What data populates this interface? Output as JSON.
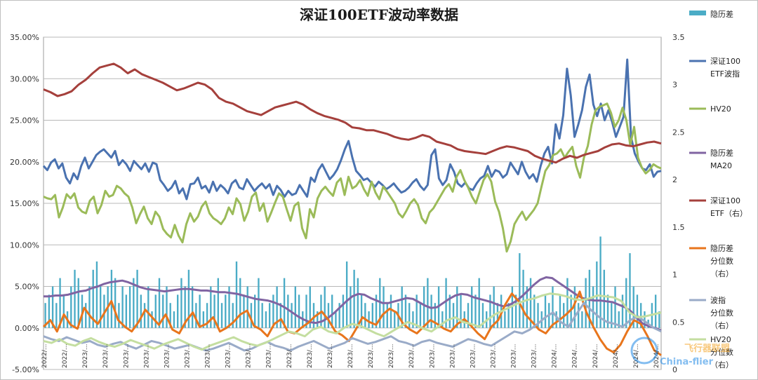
{
  "chart_data": {
    "type": "line",
    "title": "深证100ETF波动率数据",
    "xlabel": "",
    "ylabel": "",
    "ylim": [
      -0.05,
      0.35
    ],
    "y2lim": [
      0,
      3.5
    ],
    "y_ticks": [
      "-5.00%",
      "0.00%",
      "5.00%",
      "10.00%",
      "15.00%",
      "20.00%",
      "25.00%",
      "30.00%",
      "35.00%"
    ],
    "y2_ticks": [
      "0",
      "0.5",
      "1",
      "1.5",
      "2",
      "2.5",
      "3",
      "3.5"
    ],
    "x_tick_labels": [
      "2022/...",
      "2022/...",
      "2023/...",
      "2023/...",
      "2023/...",
      "2023/...",
      "2023/...",
      "2023/...",
      "2023/...",
      "2023/...",
      "2023/...",
      "2023/...",
      "2023/...",
      "2023/...",
      "2023/...",
      "2023/...",
      "2023/...",
      "2023/...",
      "2023/...",
      "2023/...",
      "2023/...",
      "2023/...",
      "2023/...",
      "2023/...",
      "2023/...",
      "2024/...",
      "2024/...",
      "2024/...",
      "2024/...",
      "2024/...",
      "2024/..."
    ],
    "grid": true,
    "legend_position": "right",
    "series": [
      {
        "name": "隐历差",
        "kind": "bar",
        "axis": "left",
        "color": "#4bacc6",
        "values": [
          0.03,
          0.04,
          0.05,
          0.03,
          0.06,
          0.04,
          0.02,
          0.05,
          0.07,
          0.06,
          0.04,
          0.03,
          0.05,
          0.07,
          0.08,
          0.05,
          0.04,
          0.05,
          0.07,
          0.06,
          0.03,
          0.05,
          0.04,
          0.05,
          0.06,
          0.07,
          0.04,
          0.03,
          0.05,
          0.02,
          0.04,
          0.06,
          0.04,
          0.05,
          0.03,
          0.02,
          0.04,
          0.06,
          0.05,
          0.07,
          0.05,
          0.03,
          0.04,
          0.02,
          0.03,
          0.05,
          0.04,
          0.06,
          0.03,
          0.04,
          0.05,
          0.03,
          0.08,
          0.06,
          0.04,
          0.05,
          0.03,
          0.04,
          0.06,
          0.03,
          0.02,
          0.03,
          0.04,
          0.05,
          0.03,
          0.06,
          0.04,
          0.03,
          0.05,
          0.04,
          0.02,
          0.04,
          0.05,
          0.03,
          0.02,
          0.04,
          0.05,
          0.03,
          0.04,
          0.02,
          0.03,
          0.04,
          0.08,
          0.05,
          0.07,
          0.06,
          0.04,
          0.03,
          0.02,
          0.03,
          0.04,
          0.06,
          0.05,
          0.03,
          0.04,
          0.02,
          0.03,
          0.05,
          0.04,
          0.03,
          0.02,
          0.04,
          0.03,
          0.05,
          0.06,
          0.04,
          0.03,
          0.05,
          0.02,
          0.06,
          0.04,
          0.03,
          0.05,
          0.04,
          0.02,
          0.03,
          0.05,
          0.04,
          0.06,
          0.03,
          0.02,
          0.04,
          0.05,
          0.03,
          0.04,
          0.02,
          0.03,
          0.05,
          0.04,
          0.09,
          0.07,
          0.05,
          0.06,
          0.04,
          0.03,
          0.02,
          0.04,
          0.03,
          0.05,
          0.02,
          0.04,
          0.03,
          0.06,
          0.04,
          0.05,
          0.03,
          0.02,
          0.06,
          0.07,
          0.05,
          0.08,
          0.11,
          0.07,
          0.04,
          0.03,
          0.05,
          0.02,
          0.04,
          0.06,
          0.09,
          0.05,
          0.04,
          0.03,
          0.02,
          0.01,
          0.03,
          0.04,
          0.02
        ]
      },
      {
        "name": "深证100ETF波指",
        "kind": "line",
        "axis": "left",
        "color": "#4a72b0",
        "values": [
          0.195,
          0.19,
          0.199,
          0.203,
          0.192,
          0.198,
          0.181,
          0.174,
          0.186,
          0.179,
          0.195,
          0.205,
          0.192,
          0.2,
          0.208,
          0.212,
          0.215,
          0.21,
          0.205,
          0.213,
          0.196,
          0.202,
          0.197,
          0.189,
          0.201,
          0.196,
          0.191,
          0.198,
          0.188,
          0.199,
          0.197,
          0.178,
          0.172,
          0.165,
          0.169,
          0.177,
          0.162,
          0.168,
          0.155,
          0.173,
          0.174,
          0.181,
          0.168,
          0.171,
          0.163,
          0.176,
          0.165,
          0.172,
          0.168,
          0.162,
          0.174,
          0.178,
          0.169,
          0.167,
          0.179,
          0.172,
          0.165,
          0.17,
          0.174,
          0.168,
          0.173,
          0.16,
          0.171,
          0.166,
          0.158,
          0.165,
          0.16,
          0.162,
          0.172,
          0.165,
          0.158,
          0.181,
          0.176,
          0.19,
          0.197,
          0.188,
          0.179,
          0.184,
          0.191,
          0.202,
          0.215,
          0.225,
          0.205,
          0.189,
          0.184,
          0.178,
          0.18,
          0.175,
          0.17,
          0.176,
          0.172,
          0.167,
          0.17,
          0.174,
          0.168,
          0.163,
          0.165,
          0.169,
          0.175,
          0.179,
          0.171,
          0.166,
          0.172,
          0.208,
          0.215,
          0.18,
          0.172,
          0.178,
          0.197,
          0.188,
          0.174,
          0.17,
          0.175,
          0.168,
          0.166,
          0.174,
          0.18,
          0.183,
          0.195,
          0.182,
          0.19,
          0.188,
          0.181,
          0.185,
          0.199,
          0.192,
          0.185,
          0.2,
          0.188,
          0.18,
          0.185,
          0.176,
          0.195,
          0.21,
          0.218,
          0.198,
          0.245,
          0.228,
          0.256,
          0.312,
          0.28,
          0.23,
          0.245,
          0.262,
          0.29,
          0.305,
          0.269,
          0.255,
          0.27,
          0.25,
          0.262,
          0.248,
          0.23,
          0.242,
          0.254,
          0.323,
          0.23,
          0.21,
          0.2,
          0.192,
          0.19,
          0.197,
          0.182,
          0.188,
          0.189
        ]
      },
      {
        "name": "HV20",
        "kind": "line",
        "axis": "left",
        "color": "#9bbb59",
        "values": [
          0.158,
          0.156,
          0.155,
          0.16,
          0.133,
          0.145,
          0.161,
          0.156,
          0.162,
          0.145,
          0.14,
          0.138,
          0.153,
          0.158,
          0.138,
          0.148,
          0.165,
          0.158,
          0.16,
          0.171,
          0.168,
          0.162,
          0.158,
          0.145,
          0.126,
          0.137,
          0.146,
          0.132,
          0.125,
          0.14,
          0.134,
          0.119,
          0.113,
          0.109,
          0.124,
          0.111,
          0.103,
          0.125,
          0.138,
          0.128,
          0.134,
          0.146,
          0.152,
          0.138,
          0.132,
          0.129,
          0.125,
          0.132,
          0.145,
          0.137,
          0.156,
          0.149,
          0.129,
          0.14,
          0.158,
          0.163,
          0.141,
          0.15,
          0.128,
          0.139,
          0.151,
          0.162,
          0.158,
          0.143,
          0.129,
          0.147,
          0.151,
          0.12,
          0.108,
          0.143,
          0.133,
          0.156,
          0.165,
          0.17,
          0.164,
          0.159,
          0.175,
          0.18,
          0.16,
          0.182,
          0.168,
          0.171,
          0.178,
          0.167,
          0.159,
          0.176,
          0.163,
          0.155,
          0.17,
          0.164,
          0.157,
          0.15,
          0.138,
          0.133,
          0.141,
          0.15,
          0.155,
          0.148,
          0.132,
          0.126,
          0.139,
          0.144,
          0.152,
          0.16,
          0.168,
          0.173,
          0.164,
          0.182,
          0.19,
          0.178,
          0.169,
          0.158,
          0.15,
          0.164,
          0.178,
          0.185,
          0.176,
          0.152,
          0.14,
          0.12,
          0.092,
          0.104,
          0.125,
          0.133,
          0.14,
          0.13,
          0.136,
          0.142,
          0.15,
          0.17,
          0.189,
          0.196,
          0.208,
          0.21,
          0.215,
          0.205,
          0.212,
          0.218,
          0.195,
          0.181,
          0.205,
          0.219,
          0.245,
          0.262,
          0.266,
          0.268,
          0.27,
          0.259,
          0.242,
          0.25,
          0.265,
          0.25,
          0.22,
          0.242,
          0.205,
          0.193,
          0.186,
          0.19,
          0.197,
          0.194,
          0.192
        ]
      },
      {
        "name": "隐历差MA20",
        "kind": "line",
        "axis": "left",
        "color": "#8064a2",
        "values": [
          0.038,
          0.038,
          0.039,
          0.039,
          0.04,
          0.042,
          0.044,
          0.045,
          0.048,
          0.05,
          0.053,
          0.055,
          0.056,
          0.057,
          0.055,
          0.052,
          0.049,
          0.047,
          0.046,
          0.045,
          0.044,
          0.045,
          0.046,
          0.047,
          0.047,
          0.046,
          0.045,
          0.045,
          0.044,
          0.043,
          0.043,
          0.042,
          0.041,
          0.039,
          0.037,
          0.035,
          0.034,
          0.033,
          0.031,
          0.028,
          0.024,
          0.019,
          0.014,
          0.01,
          0.007,
          0.006,
          0.008,
          0.012,
          0.018,
          0.025,
          0.032,
          0.038,
          0.041,
          0.04,
          0.036,
          0.033,
          0.03,
          0.03,
          0.032,
          0.034,
          0.036,
          0.035,
          0.031,
          0.027,
          0.024,
          0.025,
          0.03,
          0.035,
          0.039,
          0.041,
          0.04,
          0.037,
          0.035,
          0.033,
          0.031,
          0.028,
          0.026,
          0.028,
          0.032,
          0.038,
          0.045,
          0.052,
          0.058,
          0.061,
          0.06,
          0.055,
          0.05,
          0.045,
          0.04,
          0.036,
          0.034,
          0.033,
          0.033,
          0.032,
          0.031,
          0.028,
          0.025,
          0.02,
          0.012,
          0.005,
          0.002,
          0.0,
          -0.003
        ]
      },
      {
        "name": "深证100ETF（右）",
        "kind": "line",
        "axis": "right",
        "color": "#a5403c",
        "values": [
          2.95,
          2.92,
          2.88,
          2.9,
          2.93,
          3.0,
          3.05,
          3.12,
          3.18,
          3.2,
          3.22,
          3.18,
          3.12,
          3.16,
          3.11,
          3.08,
          3.05,
          3.02,
          2.98,
          2.94,
          2.96,
          2.99,
          3.02,
          3.0,
          2.95,
          2.86,
          2.82,
          2.8,
          2.76,
          2.72,
          2.7,
          2.68,
          2.72,
          2.76,
          2.78,
          2.8,
          2.82,
          2.79,
          2.74,
          2.7,
          2.67,
          2.65,
          2.63,
          2.6,
          2.55,
          2.54,
          2.52,
          2.52,
          2.5,
          2.48,
          2.45,
          2.43,
          2.42,
          2.44,
          2.47,
          2.45,
          2.4,
          2.38,
          2.36,
          2.32,
          2.3,
          2.29,
          2.28,
          2.27,
          2.3,
          2.33,
          2.35,
          2.34,
          2.32,
          2.3,
          2.25,
          2.22,
          2.2,
          2.18,
          2.22,
          2.25,
          2.23,
          2.26,
          2.28,
          2.3,
          2.34,
          2.37,
          2.38,
          2.36,
          2.35,
          2.37,
          2.39,
          2.4,
          2.38
        ]
      },
      {
        "name": "隐历差分位数（右）",
        "kind": "line",
        "axis": "right",
        "color": "#e8751c",
        "values": [
          0.45,
          0.52,
          0.4,
          0.58,
          0.47,
          0.43,
          0.65,
          0.55,
          0.48,
          0.6,
          0.72,
          0.52,
          0.45,
          0.4,
          0.5,
          0.63,
          0.55,
          0.47,
          0.58,
          0.42,
          0.38,
          0.51,
          0.6,
          0.45,
          0.48,
          0.55,
          0.4,
          0.44,
          0.5,
          0.58,
          0.62,
          0.46,
          0.42,
          0.35,
          0.48,
          0.53,
          0.4,
          0.38,
          0.44,
          0.49,
          0.56,
          0.61,
          0.52,
          0.4,
          0.36,
          0.3,
          0.42,
          0.55,
          0.5,
          0.47,
          0.58,
          0.64,
          0.6,
          0.48,
          0.42,
          0.38,
          0.45,
          0.52,
          0.48,
          0.43,
          0.4,
          0.48,
          0.53,
          0.46,
          0.38,
          0.32,
          0.45,
          0.52,
          0.68,
          0.8,
          0.72,
          0.58,
          0.5,
          0.42,
          0.38,
          0.47,
          0.52,
          0.58,
          0.65,
          0.82,
          0.6,
          0.45,
          0.32,
          0.22,
          0.18,
          0.26,
          0.4,
          0.52,
          0.48,
          0.35,
          0.2,
          0.15
        ]
      },
      {
        "name": "波指分位数（右）",
        "kind": "line",
        "axis": "right",
        "color": "#9aabc8",
        "values": [
          0.35,
          0.32,
          0.3,
          0.34,
          0.31,
          0.28,
          0.3,
          0.26,
          0.24,
          0.27,
          0.29,
          0.25,
          0.22,
          0.26,
          0.3,
          0.28,
          0.25,
          0.22,
          0.24,
          0.26,
          0.23,
          0.2,
          0.22,
          0.25,
          0.28,
          0.24,
          0.2,
          0.22,
          0.26,
          0.29,
          0.25,
          0.23,
          0.2,
          0.24,
          0.27,
          0.3,
          0.26,
          0.22,
          0.25,
          0.28,
          0.33,
          0.3,
          0.27,
          0.29,
          0.32,
          0.35,
          0.3,
          0.28,
          0.25,
          0.29,
          0.31,
          0.28,
          0.26,
          0.24,
          0.28,
          0.32,
          0.3,
          0.27,
          0.25,
          0.3,
          0.35,
          0.4,
          0.38,
          0.42,
          0.48,
          0.55,
          0.6,
          0.5,
          0.45,
          0.58,
          0.7,
          0.62,
          0.55,
          0.5,
          0.48,
          0.45,
          0.52,
          0.56,
          0.5,
          0.44,
          0.4
        ]
      },
      {
        "name": "HV20分位数（右）",
        "kind": "line",
        "axis": "right",
        "color": "#c4dea0",
        "values": [
          0.3,
          0.28,
          0.32,
          0.27,
          0.25,
          0.3,
          0.33,
          0.29,
          0.26,
          0.24,
          0.27,
          0.31,
          0.28,
          0.25,
          0.22,
          0.26,
          0.29,
          0.32,
          0.28,
          0.24,
          0.21,
          0.25,
          0.28,
          0.31,
          0.34,
          0.3,
          0.27,
          0.25,
          0.28,
          0.32,
          0.36,
          0.4,
          0.38,
          0.35,
          0.42,
          0.45,
          0.4,
          0.38,
          0.44,
          0.48,
          0.46,
          0.42,
          0.38,
          0.35,
          0.4,
          0.45,
          0.5,
          0.47,
          0.43,
          0.4,
          0.46,
          0.52,
          0.55,
          0.5,
          0.48,
          0.45,
          0.52,
          0.58,
          0.62,
          0.66,
          0.7,
          0.73,
          0.75,
          0.78,
          0.8,
          0.79,
          0.77,
          0.74,
          0.73,
          0.75,
          0.78,
          0.77,
          0.76,
          0.72,
          0.6,
          0.55,
          0.56,
          0.58,
          0.6
        ]
      }
    ],
    "legend_lines": [
      [
        "隐历差"
      ],
      [
        "深证100",
        "ETF波指"
      ],
      [
        "HV20"
      ],
      [
        "隐历差",
        "MA20"
      ],
      [
        "深证100",
        "ETF（右）"
      ],
      [
        "隐历差",
        "分位数",
        "（右）"
      ],
      [
        "波指",
        "分位数",
        "（右）"
      ],
      [
        "HV20",
        "分位数",
        "（右）"
      ]
    ]
  },
  "watermark": {
    "text_cn": "飞行器联盟",
    "text_en": "China-flier"
  }
}
